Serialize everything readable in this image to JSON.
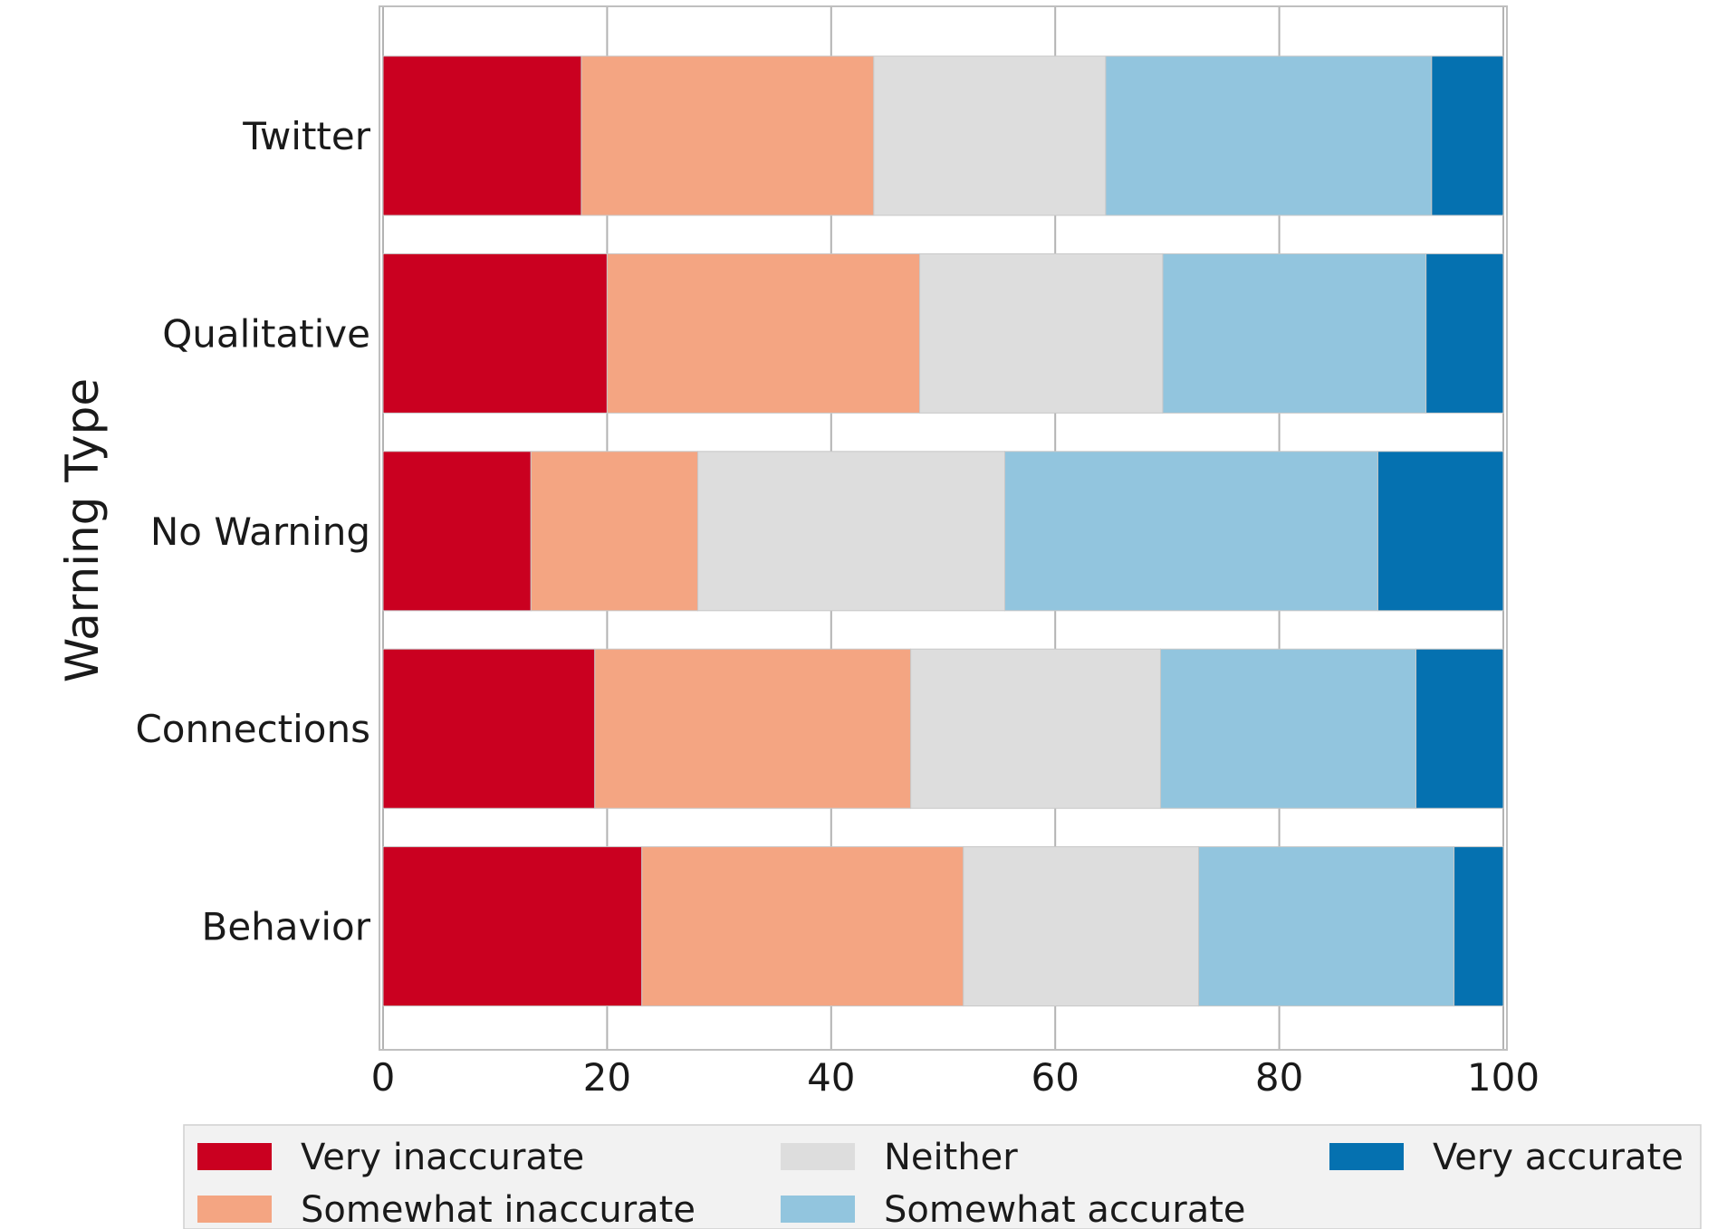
{
  "chart_data": {
    "type": "bar",
    "orientation": "horizontal",
    "stacked": true,
    "title": "",
    "xlabel": "",
    "ylabel": "Warning Type",
    "xlim": [
      0,
      100
    ],
    "x_ticks": [
      0,
      20,
      40,
      60,
      80,
      100
    ],
    "grid": true,
    "legend_position": "bottom",
    "categories": [
      "Twitter",
      "Qualitative",
      "No Warning",
      "Connections",
      "Behavior"
    ],
    "series": [
      {
        "name": "Very inaccurate",
        "color": "#ca0020",
        "values": [
          17.7,
          20.0,
          13.2,
          18.9,
          23.1
        ]
      },
      {
        "name": "Somewhat inaccurate",
        "color": "#f4a582",
        "values": [
          26.1,
          27.9,
          14.9,
          28.2,
          28.7
        ]
      },
      {
        "name": "Neither",
        "color": "#dddddd",
        "values": [
          20.7,
          21.7,
          27.4,
          22.3,
          21.0
        ]
      },
      {
        "name": "Somewhat accurate",
        "color": "#92c5de",
        "values": [
          29.1,
          23.5,
          33.3,
          22.8,
          22.8
        ]
      },
      {
        "name": "Very accurate",
        "color": "#0571b0",
        "values": [
          6.4,
          6.9,
          11.2,
          7.8,
          4.4
        ]
      }
    ]
  }
}
